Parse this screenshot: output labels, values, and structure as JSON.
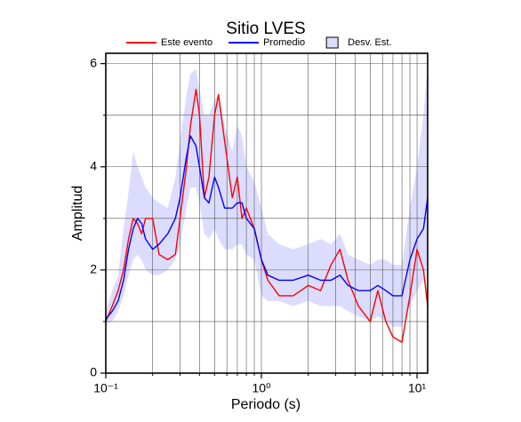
{
  "chart_data": {
    "type": "line",
    "title": "Sitio LVES",
    "xlabel": "Periodo (s)",
    "ylabel": "Amplitud",
    "xscale": "log",
    "xlim": [
      0.1,
      11.7
    ],
    "ylim": [
      0,
      6.2
    ],
    "xticks": [
      {
        "value": 0.1,
        "label": "10⁻¹"
      },
      {
        "value": 1,
        "label": "10⁰"
      },
      {
        "value": 10,
        "label": "10¹"
      }
    ],
    "xminorticks": [
      0.2,
      0.3,
      0.4,
      0.5,
      0.6,
      0.7,
      0.8,
      0.9,
      2,
      3,
      4,
      5,
      6,
      7,
      8,
      9
    ],
    "yticks": [
      0,
      2,
      4,
      6
    ],
    "yminorticks": [
      1,
      3,
      5
    ],
    "grid": true,
    "legend": "top",
    "x": [
      0.1,
      0.11,
      0.12,
      0.13,
      0.14,
      0.15,
      0.16,
      0.17,
      0.18,
      0.2,
      0.22,
      0.25,
      0.28,
      0.3,
      0.33,
      0.35,
      0.38,
      0.4,
      0.43,
      0.46,
      0.5,
      0.53,
      0.58,
      0.65,
      0.7,
      0.75,
      0.8,
      0.9,
      1.0,
      1.1,
      1.3,
      1.6,
      2.0,
      2.4,
      2.8,
      3.2,
      3.6,
      4.2,
      5.0,
      5.6,
      6.3,
      7.0,
      8.0,
      9.0,
      10.0,
      11.0,
      11.7
    ],
    "series": [
      {
        "name": "Este evento",
        "color": "#ff0000",
        "values": [
          1.0,
          1.3,
          1.6,
          2.0,
          2.6,
          3.0,
          2.9,
          2.7,
          3.0,
          3.0,
          2.3,
          2.2,
          2.3,
          3.0,
          4.0,
          4.8,
          5.5,
          5.0,
          3.4,
          3.8,
          5.0,
          5.4,
          4.5,
          3.4,
          3.8,
          3.0,
          3.2,
          2.8,
          2.2,
          1.8,
          1.5,
          1.5,
          1.7,
          1.6,
          2.1,
          2.4,
          1.8,
          1.3,
          1.0,
          1.6,
          1.0,
          0.7,
          0.6,
          1.5,
          2.4,
          2.0,
          1.3
        ]
      },
      {
        "name": "Promedio",
        "color": "#0000ff",
        "values": [
          1.05,
          1.2,
          1.4,
          1.8,
          2.4,
          2.8,
          3.0,
          2.9,
          2.6,
          2.4,
          2.5,
          2.7,
          3.0,
          3.4,
          4.2,
          4.6,
          4.4,
          4.0,
          3.4,
          3.3,
          3.8,
          3.6,
          3.2,
          3.2,
          3.3,
          3.3,
          3.0,
          2.8,
          2.2,
          1.9,
          1.8,
          1.8,
          1.9,
          1.8,
          1.8,
          1.9,
          1.7,
          1.6,
          1.6,
          1.7,
          1.6,
          1.5,
          1.5,
          2.2,
          2.6,
          2.8,
          3.4
        ]
      }
    ],
    "band": {
      "name": "Desv. Est.",
      "color": "#dcdcff",
      "lower": [
        0.95,
        1.0,
        1.2,
        1.5,
        1.9,
        2.2,
        2.3,
        2.2,
        2.0,
        1.9,
        1.9,
        2.0,
        2.2,
        2.5,
        3.2,
        3.6,
        3.6,
        3.3,
        2.7,
        2.6,
        2.8,
        2.6,
        2.4,
        2.4,
        2.5,
        2.5,
        2.3,
        2.2,
        1.5,
        1.4,
        1.4,
        1.3,
        1.4,
        1.3,
        1.3,
        1.3,
        1.2,
        1.1,
        1.0,
        1.1,
        1.0,
        0.9,
        0.9,
        1.3,
        1.6,
        1.8,
        2.2
      ],
      "upper": [
        1.2,
        1.6,
        1.9,
        2.8,
        3.5,
        4.3,
        4.0,
        3.8,
        3.6,
        3.4,
        3.3,
        3.2,
        3.8,
        4.5,
        5.4,
        5.8,
        5.9,
        5.5,
        5.0,
        5.0,
        5.3,
        5.4,
        4.8,
        4.3,
        4.8,
        4.6,
        4.0,
        3.7,
        3.2,
        2.7,
        2.5,
        2.4,
        2.5,
        2.6,
        2.5,
        2.7,
        2.3,
        2.2,
        2.1,
        2.2,
        2.2,
        2.1,
        2.1,
        3.2,
        4.0,
        5.0,
        6.0
      ]
    }
  }
}
